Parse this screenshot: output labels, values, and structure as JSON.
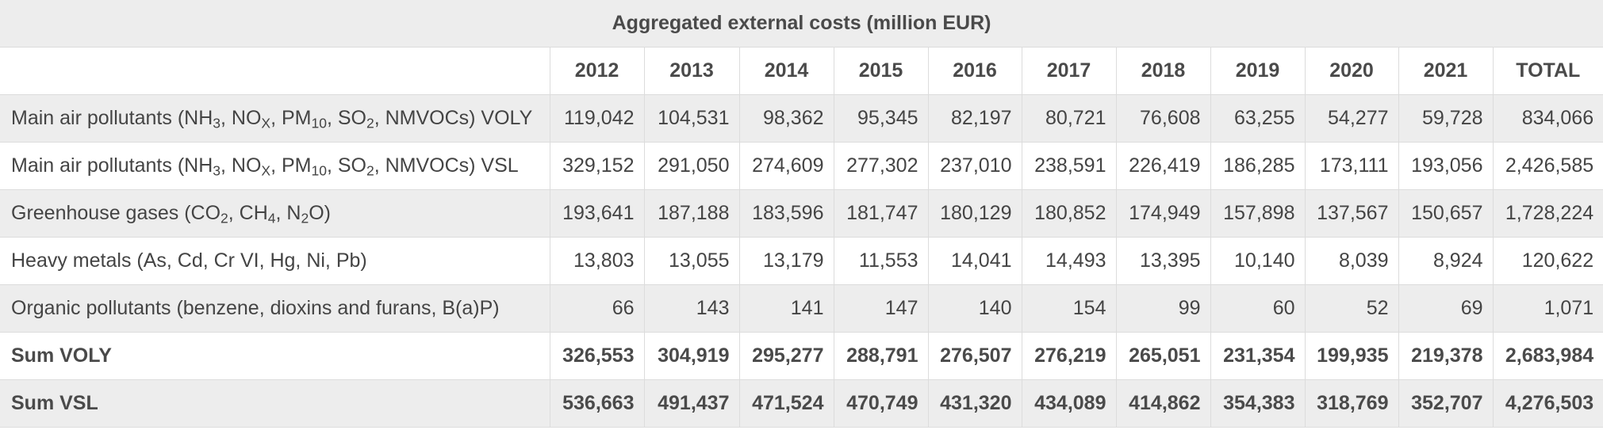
{
  "title": "Aggregated external costs (million EUR)",
  "columns": [
    "",
    "2012",
    "2013",
    "2014",
    "2015",
    "2016",
    "2017",
    "2018",
    "2019",
    "2020",
    "2021",
    "TOTAL"
  ],
  "rows": [
    {
      "label_parts": [
        "Main air pollutants (NH",
        "3",
        ", NO",
        "X",
        ", PM",
        "10",
        ", SO",
        "2",
        ", NMVOCs) VOLY"
      ],
      "values": [
        "119,042",
        "104,531",
        "98,362",
        "95,345",
        "82,197",
        "80,721",
        "76,608",
        "63,255",
        "54,277",
        "59,728",
        "834,066"
      ]
    },
    {
      "label_parts": [
        "Main air pollutants (NH",
        "3",
        ", NO",
        "X",
        ", PM",
        "10",
        ", SO",
        "2",
        ", NMVOCs) VSL"
      ],
      "values": [
        "329,152",
        "291,050",
        "274,609",
        "277,302",
        "237,010",
        "238,591",
        "226,419",
        "186,285",
        "173,111",
        "193,056",
        "2,426,585"
      ]
    },
    {
      "label_parts": [
        "Greenhouse gases (CO",
        "2",
        ", CH",
        "4",
        ", N",
        "2",
        "O)"
      ],
      "values": [
        "193,641",
        "187,188",
        "183,596",
        "181,747",
        "180,129",
        "180,852",
        "174,949",
        "157,898",
        "137,567",
        "150,657",
        "1,728,224"
      ]
    },
    {
      "label_parts": [
        "Heavy metals (As, Cd, Cr VI, Hg, Ni, Pb)"
      ],
      "values": [
        "13,803",
        "13,055",
        "13,179",
        "11,553",
        "14,041",
        "14,493",
        "13,395",
        "10,140",
        "8,039",
        "8,924",
        "120,622"
      ]
    },
    {
      "label_parts": [
        "Organic pollutants (benzene, dioxins and furans, B(a)P)"
      ],
      "values": [
        "66",
        "143",
        "141",
        "147",
        "140",
        "154",
        "99",
        "60",
        "52",
        "69",
        "1,071"
      ]
    },
    {
      "label_parts": [
        "Sum VOLY"
      ],
      "values": [
        "326,553",
        "304,919",
        "295,277",
        "288,791",
        "276,507",
        "276,219",
        "265,051",
        "231,354",
        "199,935",
        "219,378",
        "2,683,984"
      ]
    },
    {
      "label_parts": [
        "Sum VSL"
      ],
      "values": [
        "536,663",
        "491,437",
        "471,524",
        "470,749",
        "431,320",
        "434,089",
        "414,862",
        "354,383",
        "318,769",
        "352,707",
        "4,276,503"
      ]
    }
  ]
}
